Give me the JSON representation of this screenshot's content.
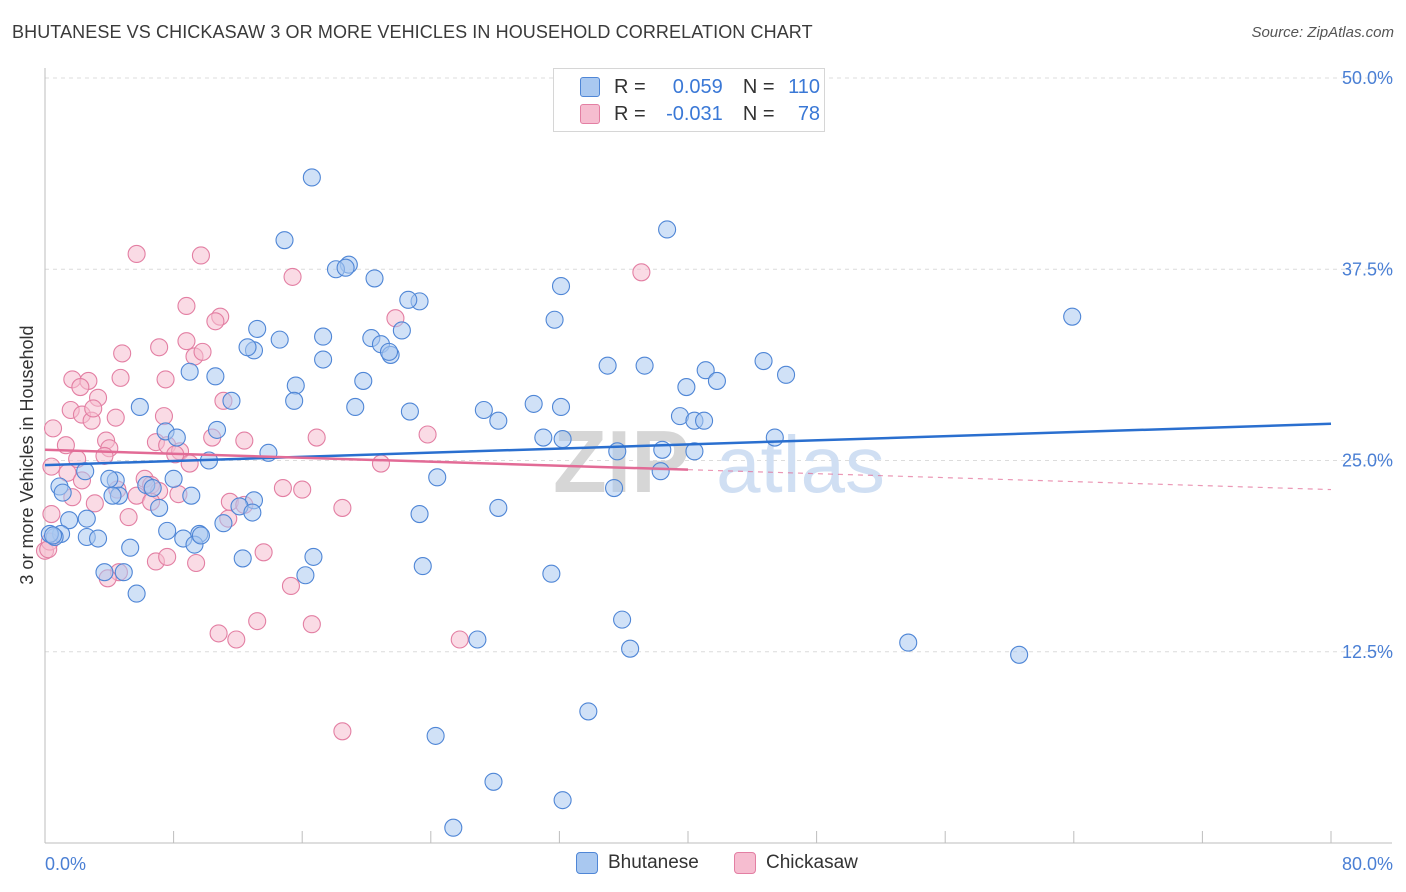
{
  "title": "BHUTANESE VS CHICKASAW 3 OR MORE VEHICLES IN HOUSEHOLD CORRELATION CHART",
  "source": "Source: ZipAtlas.com",
  "watermark": {
    "zip": "ZIP",
    "atlas": "atlas"
  },
  "colors": {
    "bhutanese_fill": "#a9c8f0",
    "bhutanese_stroke": "#4f86d6",
    "bhutanese_line": "#2a6fcf",
    "chickasaw_fill": "#f6bdd0",
    "chickasaw_stroke": "#e37fa3",
    "chickasaw_line": "#e26b96",
    "axis_label": "#4a7fd4"
  },
  "legend": {
    "rows": [
      {
        "r_label": "R =",
        "r_value": "0.059",
        "n_label": "N =",
        "n_value": "110"
      },
      {
        "r_label": "R =",
        "r_value": "-0.031",
        "n_label": "N =",
        "n_value": "78"
      }
    ]
  },
  "bottom_legend": [
    "Bhutanese",
    "Chickasaw"
  ],
  "chart_data": {
    "type": "scatter",
    "title": "BHUTANESE VS CHICKASAW 3 OR MORE VEHICLES IN HOUSEHOLD CORRELATION CHART",
    "xlabel": "",
    "ylabel": "3 or more Vehicles in Household",
    "xlim": [
      0,
      80
    ],
    "ylim": [
      0,
      50
    ],
    "x_tick_labels": [
      "0.0%",
      "80.0%"
    ],
    "y_tick_labels": [
      "12.5%",
      "25.0%",
      "37.5%",
      "50.0%"
    ],
    "y_ticks": [
      12.5,
      25.0,
      37.5,
      50.0
    ],
    "grid": "horizontal dashed",
    "legend_placement": "top-center",
    "series": [
      {
        "name": "Bhutanese",
        "trend": {
          "x": [
            0,
            80
          ],
          "y": [
            24.7,
            27.4
          ]
        },
        "points": [
          [
            16.6,
            43.5
          ],
          [
            14.9,
            39.4
          ],
          [
            18.9,
            37.8
          ],
          [
            18.1,
            37.5
          ],
          [
            18.7,
            37.6
          ],
          [
            20.5,
            36.9
          ],
          [
            23.3,
            35.4
          ],
          [
            22.6,
            35.5
          ],
          [
            32.1,
            36.4
          ],
          [
            38.7,
            40.1
          ],
          [
            13.2,
            33.6
          ],
          [
            14.6,
            32.9
          ],
          [
            17.3,
            33.1
          ],
          [
            20.3,
            33.0
          ],
          [
            20.9,
            32.6
          ],
          [
            22.2,
            33.5
          ],
          [
            13.0,
            32.2
          ],
          [
            12.6,
            32.4
          ],
          [
            17.3,
            31.6
          ],
          [
            21.5,
            31.9
          ],
          [
            21.4,
            32.1
          ],
          [
            35.0,
            31.2
          ],
          [
            37.3,
            31.2
          ],
          [
            41.1,
            30.9
          ],
          [
            44.7,
            31.5
          ],
          [
            46.1,
            30.6
          ],
          [
            39.9,
            29.8
          ],
          [
            41.8,
            30.2
          ],
          [
            63.9,
            34.4
          ],
          [
            31.7,
            34.2
          ],
          [
            10.6,
            30.5
          ],
          [
            9.0,
            30.8
          ],
          [
            15.6,
            29.9
          ],
          [
            19.8,
            30.2
          ],
          [
            15.5,
            28.9
          ],
          [
            11.6,
            28.9
          ],
          [
            5.9,
            28.5
          ],
          [
            19.3,
            28.5
          ],
          [
            22.7,
            28.2
          ],
          [
            27.3,
            28.3
          ],
          [
            30.4,
            28.7
          ],
          [
            32.1,
            28.5
          ],
          [
            28.2,
            27.6
          ],
          [
            39.5,
            27.9
          ],
          [
            40.4,
            27.6
          ],
          [
            41.0,
            27.6
          ],
          [
            10.7,
            27.0
          ],
          [
            7.5,
            26.9
          ],
          [
            8.2,
            26.5
          ],
          [
            31.0,
            26.5
          ],
          [
            32.2,
            26.4
          ],
          [
            45.4,
            26.5
          ],
          [
            13.9,
            25.5
          ],
          [
            10.2,
            25.0
          ],
          [
            35.6,
            25.6
          ],
          [
            38.4,
            25.7
          ],
          [
            40.4,
            25.6
          ],
          [
            2.5,
            24.3
          ],
          [
            4.4,
            23.7
          ],
          [
            0.9,
            23.3
          ],
          [
            1.1,
            22.9
          ],
          [
            6.3,
            23.4
          ],
          [
            6.7,
            23.2
          ],
          [
            4.6,
            22.7
          ],
          [
            4.2,
            22.7
          ],
          [
            9.1,
            22.7
          ],
          [
            8.0,
            23.8
          ],
          [
            24.4,
            23.9
          ],
          [
            38.3,
            24.3
          ],
          [
            35.4,
            23.2
          ],
          [
            13.0,
            22.4
          ],
          [
            12.1,
            22.0
          ],
          [
            11.1,
            20.9
          ],
          [
            7.1,
            21.9
          ],
          [
            1.5,
            21.1
          ],
          [
            2.6,
            21.2
          ],
          [
            23.3,
            21.5
          ],
          [
            28.2,
            21.9
          ],
          [
            1.0,
            20.2
          ],
          [
            0.6,
            20.0
          ],
          [
            2.6,
            20.0
          ],
          [
            3.3,
            19.9
          ],
          [
            7.6,
            20.4
          ],
          [
            8.6,
            19.9
          ],
          [
            9.6,
            20.2
          ],
          [
            9.3,
            19.5
          ],
          [
            5.3,
            19.3
          ],
          [
            12.3,
            18.6
          ],
          [
            16.7,
            18.7
          ],
          [
            23.5,
            18.1
          ],
          [
            3.7,
            17.7
          ],
          [
            4.9,
            17.7
          ],
          [
            16.2,
            17.5
          ],
          [
            31.5,
            17.6
          ],
          [
            5.7,
            16.3
          ],
          [
            35.9,
            14.6
          ],
          [
            26.9,
            13.3
          ],
          [
            36.4,
            12.7
          ],
          [
            53.7,
            13.1
          ],
          [
            60.6,
            12.3
          ],
          [
            33.8,
            8.6
          ],
          [
            24.3,
            7.0
          ],
          [
            27.9,
            4.0
          ],
          [
            32.2,
            2.8
          ],
          [
            25.4,
            1.0
          ],
          [
            0.3,
            20.2
          ],
          [
            0.5,
            20.1
          ],
          [
            9.7,
            20.1
          ],
          [
            4.0,
            23.8
          ],
          [
            12.9,
            21.6
          ]
        ]
      },
      {
        "name": "Chickasaw",
        "trend": {
          "x": [
            0,
            40
          ],
          "y": [
            25.7,
            24.4
          ]
        },
        "trend_extension": {
          "x": [
            40,
            80
          ],
          "y": [
            24.4,
            23.1
          ]
        },
        "points": [
          [
            5.7,
            38.5
          ],
          [
            9.7,
            38.4
          ],
          [
            15.4,
            37.0
          ],
          [
            37.1,
            37.3
          ],
          [
            8.8,
            35.1
          ],
          [
            10.9,
            34.4
          ],
          [
            10.6,
            34.1
          ],
          [
            21.8,
            34.3
          ],
          [
            8.8,
            32.8
          ],
          [
            7.1,
            32.4
          ],
          [
            4.8,
            32.0
          ],
          [
            9.3,
            31.8
          ],
          [
            9.8,
            32.1
          ],
          [
            0.4,
            24.6
          ],
          [
            1.7,
            30.3
          ],
          [
            2.7,
            30.2
          ],
          [
            2.2,
            29.8
          ],
          [
            3.3,
            29.1
          ],
          [
            4.7,
            30.4
          ],
          [
            7.5,
            30.3
          ],
          [
            1.6,
            28.3
          ],
          [
            2.3,
            28.0
          ],
          [
            2.9,
            27.6
          ],
          [
            3.0,
            28.4
          ],
          [
            4.4,
            27.8
          ],
          [
            7.4,
            27.9
          ],
          [
            11.1,
            28.9
          ],
          [
            0.5,
            27.1
          ],
          [
            1.3,
            26.0
          ],
          [
            3.8,
            26.3
          ],
          [
            4.0,
            25.8
          ],
          [
            6.9,
            26.2
          ],
          [
            7.6,
            26.0
          ],
          [
            8.4,
            25.6
          ],
          [
            10.4,
            26.5
          ],
          [
            12.4,
            26.3
          ],
          [
            16.9,
            26.5
          ],
          [
            23.8,
            26.7
          ],
          [
            2.0,
            25.1
          ],
          [
            3.7,
            25.3
          ],
          [
            8.1,
            25.4
          ],
          [
            9.0,
            24.8
          ],
          [
            20.9,
            24.8
          ],
          [
            1.4,
            24.2
          ],
          [
            6.2,
            23.8
          ],
          [
            2.3,
            23.7
          ],
          [
            6.6,
            23.4
          ],
          [
            4.5,
            23.1
          ],
          [
            14.8,
            23.2
          ],
          [
            16.0,
            23.1
          ],
          [
            1.7,
            22.6
          ],
          [
            3.1,
            22.2
          ],
          [
            5.7,
            22.7
          ],
          [
            7.1,
            23.0
          ],
          [
            8.3,
            22.8
          ],
          [
            11.5,
            22.3
          ],
          [
            12.4,
            22.1
          ],
          [
            6.6,
            22.3
          ],
          [
            18.5,
            21.9
          ],
          [
            0.4,
            21.5
          ],
          [
            5.2,
            21.3
          ],
          [
            11.4,
            21.2
          ],
          [
            13.6,
            19.0
          ],
          [
            0.0,
            19.1
          ],
          [
            0.3,
            19.7
          ],
          [
            6.9,
            18.4
          ],
          [
            7.6,
            18.7
          ],
          [
            9.4,
            18.3
          ],
          [
            4.6,
            17.7
          ],
          [
            15.3,
            16.8
          ],
          [
            13.2,
            14.5
          ],
          [
            16.6,
            14.3
          ],
          [
            10.8,
            13.7
          ],
          [
            11.9,
            13.3
          ],
          [
            25.8,
            13.3
          ],
          [
            18.5,
            7.3
          ],
          [
            0.2,
            19.2
          ],
          [
            3.9,
            17.3
          ]
        ]
      }
    ]
  }
}
